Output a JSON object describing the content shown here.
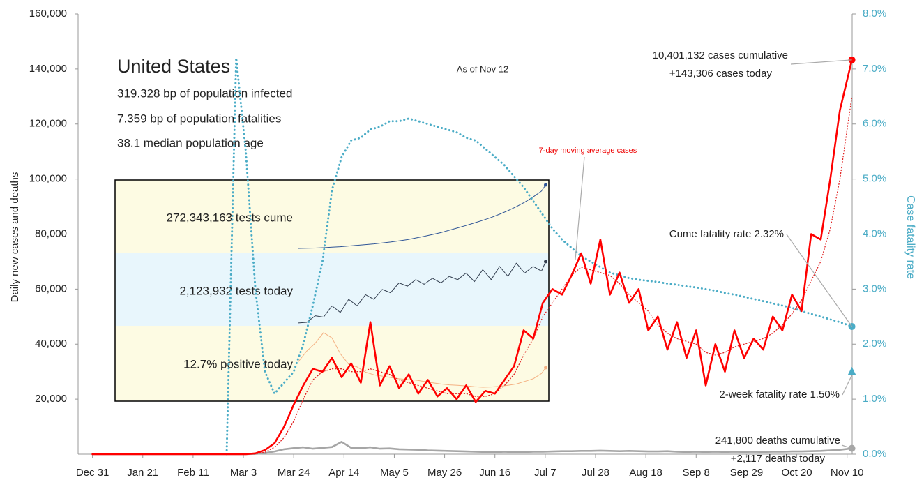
{
  "chart_data": [
    {
      "type": "line",
      "title": "United States",
      "notes": [
        "319.328 bp of population infected",
        "7.359 bp of population fatalities",
        "38.1 median population age"
      ],
      "y_label": "Daily new cases and deaths",
      "y2_label": "Case fatality rate",
      "xlim": [
        -6,
        318
      ],
      "xticks": [
        {
          "value": 0,
          "label": "Dec 31"
        },
        {
          "value": 21,
          "label": "Jan 21"
        },
        {
          "value": 42,
          "label": "Feb 11"
        },
        {
          "value": 63,
          "label": "Mar 3"
        },
        {
          "value": 84,
          "label": "Mar 24"
        },
        {
          "value": 105,
          "label": "Apr 14"
        },
        {
          "value": 126,
          "label": "May 5"
        },
        {
          "value": 147,
          "label": "May 26"
        },
        {
          "value": 168,
          "label": "Jun 16"
        },
        {
          "value": 189,
          "label": "Jul 7"
        },
        {
          "value": 210,
          "label": "Jul 28"
        },
        {
          "value": 231,
          "label": "Aug 18"
        },
        {
          "value": 252,
          "label": "Sep 8"
        },
        {
          "value": 273,
          "label": "Sep 29"
        },
        {
          "value": 294,
          "label": "Oct 20"
        },
        {
          "value": 315,
          "label": "Nov 10"
        }
      ],
      "ylim": [
        0,
        160000
      ],
      "yticks": [
        {
          "value": 20000,
          "label": "20,000"
        },
        {
          "value": 40000,
          "label": "40,000"
        },
        {
          "value": 60000,
          "label": "60,000"
        },
        {
          "value": 80000,
          "label": "80,000"
        },
        {
          "value": 100000,
          "label": "100,000"
        },
        {
          "value": 120000,
          "label": "120,000"
        },
        {
          "value": 140000,
          "label": "140,000"
        },
        {
          "value": 160000,
          "label": "160,000"
        }
      ],
      "y2lim": [
        0,
        8
      ],
      "y2ticks": [
        {
          "value": 0,
          "label": "0.0%"
        },
        {
          "value": 1,
          "label": "1.0%"
        },
        {
          "value": 2,
          "label": "2.0%"
        },
        {
          "value": 3,
          "label": "3.0%"
        },
        {
          "value": 4,
          "label": "4.0%"
        },
        {
          "value": 5,
          "label": "5.0%"
        },
        {
          "value": 6,
          "label": "6.0%"
        },
        {
          "value": 7,
          "label": "7.0%"
        },
        {
          "value": 8,
          "label": "8.0%"
        }
      ],
      "x": [
        0,
        14,
        28,
        42,
        56,
        60,
        64,
        68,
        72,
        76,
        80,
        84,
        88,
        92,
        96,
        100,
        104,
        108,
        112,
        116,
        120,
        124,
        128,
        132,
        136,
        140,
        144,
        148,
        152,
        156,
        160,
        164,
        168,
        172,
        176,
        180,
        184,
        188,
        192,
        196,
        200,
        204,
        208,
        212,
        216,
        220,
        224,
        228,
        232,
        236,
        240,
        244,
        248,
        252,
        256,
        260,
        264,
        268,
        272,
        276,
        280,
        284,
        288,
        292,
        296,
        300,
        304,
        308,
        312,
        317
      ],
      "series": [
        {
          "color": "#4bacc6",
          "style": "heavy-dotted",
          "axis": "y2",
          "marker_end": "circle",
          "values": [
            null,
            null,
            null,
            null,
            0,
            7.2,
            5.5,
            3.0,
            1.5,
            1.1,
            1.3,
            1.5,
            2.0,
            2.7,
            3.5,
            4.8,
            5.4,
            5.7,
            5.75,
            5.9,
            5.95,
            6.05,
            6.05,
            6.1,
            6.05,
            6.0,
            5.95,
            5.9,
            5.85,
            5.75,
            5.7,
            5.55,
            5.4,
            5.25,
            5.05,
            4.85,
            4.6,
            4.35,
            4.1,
            3.9,
            3.75,
            3.6,
            3.5,
            3.4,
            3.3,
            3.25,
            3.2,
            3.17,
            3.15,
            3.13,
            3.1,
            3.08,
            3.05,
            3.03,
            3.0,
            2.97,
            2.93,
            2.9,
            2.86,
            2.82,
            2.78,
            2.74,
            2.7,
            2.66,
            2.6,
            2.55,
            2.5,
            2.45,
            2.4,
            2.32
          ]
        },
        {
          "color": "#a6a6a6",
          "style": "solid",
          "axis": "y",
          "marker_end": "circle",
          "values": [
            0,
            0,
            0,
            0,
            0,
            0,
            0,
            100,
            400,
            1000,
            1800,
            2200,
            2500,
            2000,
            2300,
            2600,
            4500,
            2300,
            2200,
            2500,
            2000,
            2100,
            1800,
            1700,
            1600,
            1400,
            1300,
            1200,
            1100,
            1000,
            900,
            800,
            700,
            900,
            700,
            800,
            900,
            900,
            1000,
            1100,
            1100,
            1200,
            1200,
            1300,
            1200,
            1100,
            1200,
            1100,
            1000,
            1000,
            1100,
            900,
            800,
            900,
            800,
            900,
            800,
            900,
            800,
            900,
            800,
            900,
            900,
            1000,
            1000,
            1100,
            1200,
            1400,
            1600,
            2117
          ]
        },
        {
          "color": "#e02020",
          "style": "dotted",
          "axis": "y",
          "values": [
            0,
            0,
            0,
            0,
            0,
            0,
            0,
            100,
            700,
            2500,
            6000,
            12000,
            20000,
            27000,
            30000,
            31000,
            31000,
            30000,
            30000,
            31000,
            30000,
            29000,
            27000,
            26000,
            25000,
            24000,
            23000,
            22000,
            22000,
            22000,
            21000,
            21000,
            22000,
            25000,
            29000,
            36000,
            42000,
            50000,
            55000,
            60000,
            65000,
            68000,
            67000,
            66000,
            65000,
            62000,
            58000,
            55000,
            52000,
            47000,
            44000,
            42000,
            41000,
            40000,
            37000,
            36000,
            37000,
            39000,
            40000,
            41000,
            42000,
            44000,
            47000,
            51000,
            56000,
            63000,
            70000,
            82000,
            100000,
            130000
          ]
        },
        {
          "color": "#ff0000",
          "style": "solid",
          "axis": "y",
          "marker_end": "circle",
          "values": [
            0,
            0,
            0,
            0,
            0,
            0,
            0,
            300,
            1500,
            4000,
            10000,
            18000,
            25000,
            31000,
            30000,
            35000,
            28000,
            33000,
            26000,
            48000,
            25000,
            32000,
            24000,
            29000,
            22000,
            27000,
            21000,
            24000,
            20000,
            25000,
            19000,
            23000,
            22000,
            27000,
            32000,
            45000,
            42000,
            55000,
            60000,
            58000,
            65000,
            73000,
            62000,
            78000,
            58000,
            66000,
            55000,
            60000,
            45000,
            50000,
            38000,
            48000,
            35000,
            45000,
            25000,
            40000,
            30000,
            45000,
            35000,
            42000,
            38000,
            50000,
            45000,
            58000,
            52000,
            80000,
            78000,
            100000,
            125000,
            143306
          ]
        }
      ],
      "annotations": [
        {
          "text": "10,401,132 cases cumulative"
        },
        {
          "text": "+143,306 cases today"
        },
        {
          "text": "Cume fatality rate 2.32%"
        },
        {
          "text": "2-week fatality rate 1.50%",
          "x": 317,
          "value": 1.5,
          "axis": "y2",
          "color": "#4bacc6"
        },
        {
          "text": "241,800 deaths cumulative"
        },
        {
          "text": "+2,117 deaths today"
        },
        {
          "text": "7-day moving average cases"
        },
        {
          "text": "As of Nov 12"
        }
      ]
    },
    {
      "type": "line",
      "xlim": [
        -94,
        320
      ],
      "x": [
        81,
        89,
        97,
        105,
        113,
        121,
        129,
        137,
        145,
        153,
        161,
        169,
        177,
        185,
        193,
        201,
        209,
        217,
        225,
        233,
        241,
        249,
        257,
        265,
        273,
        281,
        289,
        297,
        305,
        313,
        317
      ],
      "series": [
        {
          "color": "#2f5597",
          "style": "thin",
          "ylim": [
            -645000000,
            293000000
          ],
          "marker_end": "dot",
          "values": [
            3000000,
            3500000,
            4500000,
            6000000,
            8000000,
            10000000,
            13000000,
            16000000,
            19000000,
            22000000,
            26000000,
            30000000,
            35000000,
            40000000,
            47000000,
            54000000,
            62000000,
            70000000,
            80000000,
            90000000,
            100000000,
            111000000,
            122000000,
            134000000,
            148000000,
            163000000,
            180000000,
            199000000,
            221000000,
            246000000,
            272343163
          ]
        },
        {
          "color": "#333f50",
          "style": "thin",
          "ylim": [
            0,
            3366000
          ],
          "marker_end": "dot",
          "values": [
            1190000,
            1200000,
            1300000,
            1280000,
            1450000,
            1350000,
            1550000,
            1450000,
            1620000,
            1550000,
            1700000,
            1650000,
            1800000,
            1750000,
            1850000,
            1780000,
            1870000,
            1800000,
            1900000,
            1850000,
            1950000,
            1820000,
            2000000,
            1850000,
            2050000,
            1900000,
            2100000,
            1950000,
            2050000,
            1980000,
            2123932
          ]
        },
        {
          "color": "#f4b183",
          "style": "thin",
          "ylim": [
            0,
            83.9
          ],
          "marker_end": "dot",
          "values": [
            15,
            19,
            22,
            26,
            24,
            18,
            14,
            13,
            11,
            10,
            9.5,
            9,
            8.5,
            8.2,
            8,
            7.5,
            7,
            6.5,
            6.2,
            6,
            5.8,
            5.5,
            5.3,
            5.4,
            5.6,
            6,
            6.5,
            7.5,
            8.5,
            10.5,
            12.7
          ]
        }
      ],
      "annotations": [
        {
          "text": "272,343,163 tests cume"
        },
        {
          "text": "2,123,932 tests today"
        },
        {
          "text": "12.7% positive today"
        }
      ]
    }
  ]
}
